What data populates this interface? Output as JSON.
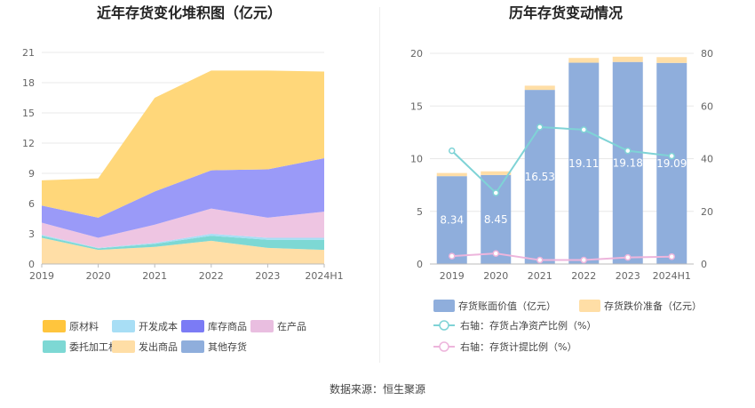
{
  "source_label": "数据来源：恒生聚源",
  "chart_data": [
    {
      "type": "area",
      "title": "近年存货变化堆积图（亿元）",
      "x": [
        "2019",
        "2020",
        "2021",
        "2022",
        "2023",
        "2024H1"
      ],
      "ylim": [
        0,
        21
      ],
      "yticks": [
        "0",
        "3",
        "6",
        "9",
        "12",
        "15",
        "18",
        "21"
      ],
      "grid": true,
      "legend_position": "bottom",
      "series": [
        {
          "name": "发出商品",
          "color": "#FFDEA6",
          "values": [
            2.6,
            1.4,
            1.7,
            2.3,
            1.6,
            1.4
          ]
        },
        {
          "name": "委托加工材料",
          "color": "#7DD8D4",
          "values": [
            0.2,
            0.15,
            0.3,
            0.5,
            0.8,
            1.0
          ]
        },
        {
          "name": "开发成本",
          "color": "#A8DEF5",
          "values": [
            0.1,
            0.05,
            0.1,
            0.2,
            0.2,
            0.2
          ]
        },
        {
          "name": "在产品",
          "color": "#EEC5E2",
          "values": [
            1.2,
            1.0,
            1.8,
            2.5,
            2.0,
            2.6
          ]
        },
        {
          "name": "其他存货",
          "color": "#8FAEDC",
          "values": [
            0,
            0,
            0,
            0,
            0,
            0
          ]
        },
        {
          "name": "库存商品",
          "color": "#9A9AF8",
          "values": [
            1.7,
            2.0,
            3.3,
            3.8,
            4.8,
            5.3
          ]
        },
        {
          "name": "原材料",
          "color": "#FFD77A",
          "values": [
            2.5,
            3.9,
            9.3,
            9.9,
            9.8,
            8.6
          ]
        }
      ],
      "legend": [
        {
          "name": "原材料",
          "color": "#FFC53D"
        },
        {
          "name": "开发成本",
          "color": "#A8DEF5"
        },
        {
          "name": "库存商品",
          "color": "#7B7BF5"
        },
        {
          "name": "在产品",
          "color": "#E9BEE0"
        },
        {
          "name": "委托加工材料",
          "color": "#7DD8D4"
        },
        {
          "name": "发出商品",
          "color": "#FFDEA6"
        },
        {
          "name": "其他存货",
          "color": "#8FAEDC"
        }
      ]
    },
    {
      "type": "bar",
      "title": "历年存货变动情况",
      "categories": [
        "2019",
        "2020",
        "2021",
        "2022",
        "2023",
        "2024H1"
      ],
      "ylim": [
        0,
        20
      ],
      "yticks": [
        "0",
        "5",
        "10",
        "15",
        "20"
      ],
      "y2lim": [
        0,
        80
      ],
      "y2ticks": [
        "0",
        "20",
        "40",
        "60",
        "80"
      ],
      "grid": true,
      "legend_position": "bottom",
      "series": [
        {
          "name": "存货账面价值（亿元）",
          "kind": "bar",
          "color": "#8FAEDC",
          "values": [
            8.34,
            8.45,
            16.53,
            19.11,
            19.18,
            19.09
          ],
          "labels": [
            "8.34",
            "8.45",
            "16.53",
            "19.11",
            "19.18",
            "19.09"
          ]
        },
        {
          "name": "存货跌价准备（亿元）",
          "kind": "bar",
          "color": "#FFDEA6",
          "values": [
            0.3,
            0.35,
            0.4,
            0.45,
            0.5,
            0.55
          ]
        },
        {
          "name": "右轴：存货占净资产比例（%）",
          "kind": "line",
          "axis": "right",
          "color": "#7FD3D6",
          "values": [
            43,
            27,
            52,
            51,
            43,
            41
          ]
        },
        {
          "name": "右轴：存货计提比例（%）",
          "kind": "line",
          "axis": "right",
          "color": "#EDB5DC",
          "values": [
            3,
            4,
            1.5,
            1.5,
            2.5,
            2.8
          ]
        }
      ]
    }
  ]
}
